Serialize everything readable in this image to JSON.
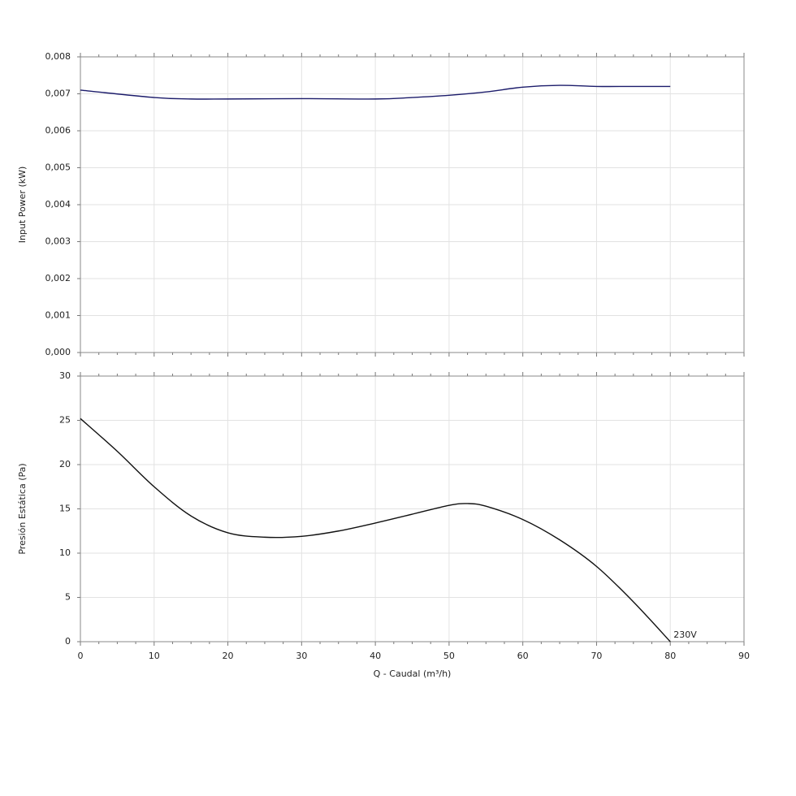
{
  "chart_data": [
    {
      "type": "line",
      "y_label": "Input Power (kW)",
      "x": [
        0,
        10,
        15,
        20,
        30,
        40,
        45,
        50,
        55,
        60,
        65,
        70,
        75,
        80
      ],
      "series": [
        {
          "color": "#1c1c6b",
          "values": [
            0.0071,
            0.0069,
            0.00686,
            0.00686,
            0.00687,
            0.00686,
            0.0069,
            0.00696,
            0.00705,
            0.00718,
            0.00723,
            0.0072,
            0.0072,
            0.0072
          ]
        }
      ],
      "xlim": [
        0,
        90
      ],
      "ylim": [
        0,
        0.008
      ],
      "yticks": [
        {
          "value": 0,
          "label": "0,000"
        },
        {
          "value": 0.001,
          "label": "0,001"
        },
        {
          "value": 0.002,
          "label": "0,002"
        },
        {
          "value": 0.003,
          "label": "0,003"
        },
        {
          "value": 0.004,
          "label": "0,004"
        },
        {
          "value": 0.005,
          "label": "0,005"
        },
        {
          "value": 0.006,
          "label": "0,006"
        },
        {
          "value": 0.007,
          "label": "0,007"
        },
        {
          "value": 0.008,
          "label": "0,008"
        }
      ],
      "grid": true
    },
    {
      "type": "line",
      "y_label": "Presión Estática (Pa)",
      "x_label": "Q - Caudal (m³/h)",
      "x": [
        0,
        5,
        10,
        15,
        20,
        25,
        30,
        35,
        40,
        45,
        50,
        52.5,
        55,
        60,
        65,
        70,
        75,
        80
      ],
      "series": [
        {
          "name": "230V",
          "color": "#111111",
          "values": [
            25.2,
            21.5,
            17.5,
            14.2,
            12.3,
            11.8,
            11.9,
            12.5,
            13.4,
            14.4,
            15.4,
            15.6,
            15.3,
            13.8,
            11.5,
            8.5,
            4.5,
            0
          ]
        }
      ],
      "xlim": [
        0,
        90
      ],
      "xticks": [
        0,
        10,
        20,
        30,
        40,
        50,
        60,
        70,
        80,
        90
      ],
      "ylim": [
        0,
        30
      ],
      "yticks": [
        0,
        5,
        10,
        15,
        20,
        25,
        30
      ],
      "grid": true
    }
  ]
}
